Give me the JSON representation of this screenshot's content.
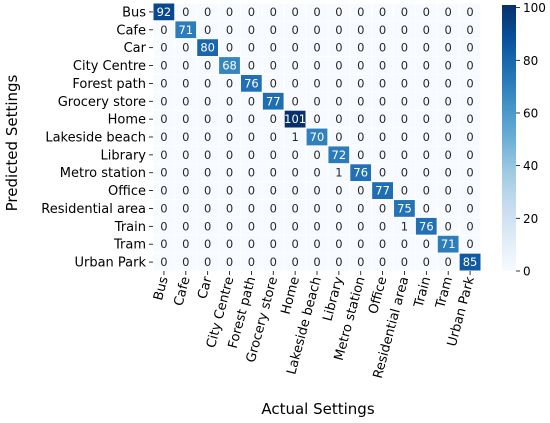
{
  "chart_data": {
    "type": "heatmap",
    "xlabel": "Actual Settings",
    "ylabel": "Predicted Settings",
    "x_categories": [
      "Bus",
      "Cafe",
      "Car",
      "City Centre",
      "Forest path",
      "Grocery store",
      "Home",
      "Lakeside beach",
      "Library",
      "Metro station",
      "Office",
      "Residential area",
      "Train",
      "Tram",
      "Urban Park"
    ],
    "y_categories": [
      "Bus",
      "Cafe",
      "Car",
      "City Centre",
      "Forest path",
      "Grocery store",
      "Home",
      "Lakeside beach",
      "Library",
      "Metro station",
      "Office",
      "Residential area",
      "Train",
      "Tram",
      "Urban Park"
    ],
    "values": [
      [
        92,
        0,
        0,
        0,
        0,
        0,
        0,
        0,
        0,
        0,
        0,
        0,
        0,
        0,
        0
      ],
      [
        0,
        71,
        0,
        0,
        0,
        0,
        0,
        0,
        0,
        0,
        0,
        0,
        0,
        0,
        0
      ],
      [
        0,
        0,
        80,
        0,
        0,
        0,
        0,
        0,
        0,
        0,
        0,
        0,
        0,
        0,
        0
      ],
      [
        0,
        0,
        0,
        68,
        0,
        0,
        0,
        0,
        0,
        0,
        0,
        0,
        0,
        0,
        0
      ],
      [
        0,
        0,
        0,
        0,
        76,
        0,
        0,
        0,
        0,
        0,
        0,
        0,
        0,
        0,
        0
      ],
      [
        0,
        0,
        0,
        0,
        0,
        77,
        0,
        0,
        0,
        0,
        0,
        0,
        0,
        0,
        0
      ],
      [
        0,
        0,
        0,
        0,
        0,
        0,
        101,
        0,
        0,
        0,
        0,
        0,
        0,
        0,
        0
      ],
      [
        0,
        0,
        0,
        0,
        0,
        0,
        1,
        70,
        0,
        0,
        0,
        0,
        0,
        0,
        0
      ],
      [
        0,
        0,
        0,
        0,
        0,
        0,
        0,
        0,
        72,
        0,
        0,
        0,
        0,
        0,
        0
      ],
      [
        0,
        0,
        0,
        0,
        0,
        0,
        0,
        0,
        1,
        76,
        0,
        0,
        0,
        0,
        0
      ],
      [
        0,
        0,
        0,
        0,
        0,
        0,
        0,
        0,
        0,
        0,
        77,
        0,
        0,
        0,
        0
      ],
      [
        0,
        0,
        0,
        0,
        0,
        0,
        0,
        0,
        0,
        0,
        0,
        75,
        0,
        0,
        0
      ],
      [
        0,
        0,
        0,
        0,
        0,
        0,
        0,
        0,
        0,
        0,
        0,
        1,
        76,
        0,
        0
      ],
      [
        0,
        0,
        0,
        0,
        0,
        0,
        0,
        0,
        0,
        0,
        0,
        0,
        0,
        71,
        0
      ],
      [
        0,
        0,
        0,
        0,
        0,
        0,
        0,
        0,
        0,
        0,
        0,
        0,
        0,
        0,
        85
      ]
    ],
    "colorbar": {
      "range": [
        0,
        101
      ],
      "ticks": [
        0,
        20,
        40,
        60,
        80,
        100
      ]
    },
    "colormap": "Blues",
    "colors": {
      "low": "#f7fbff",
      "high": "#08306b",
      "cell_border": "#ffffff"
    }
  }
}
